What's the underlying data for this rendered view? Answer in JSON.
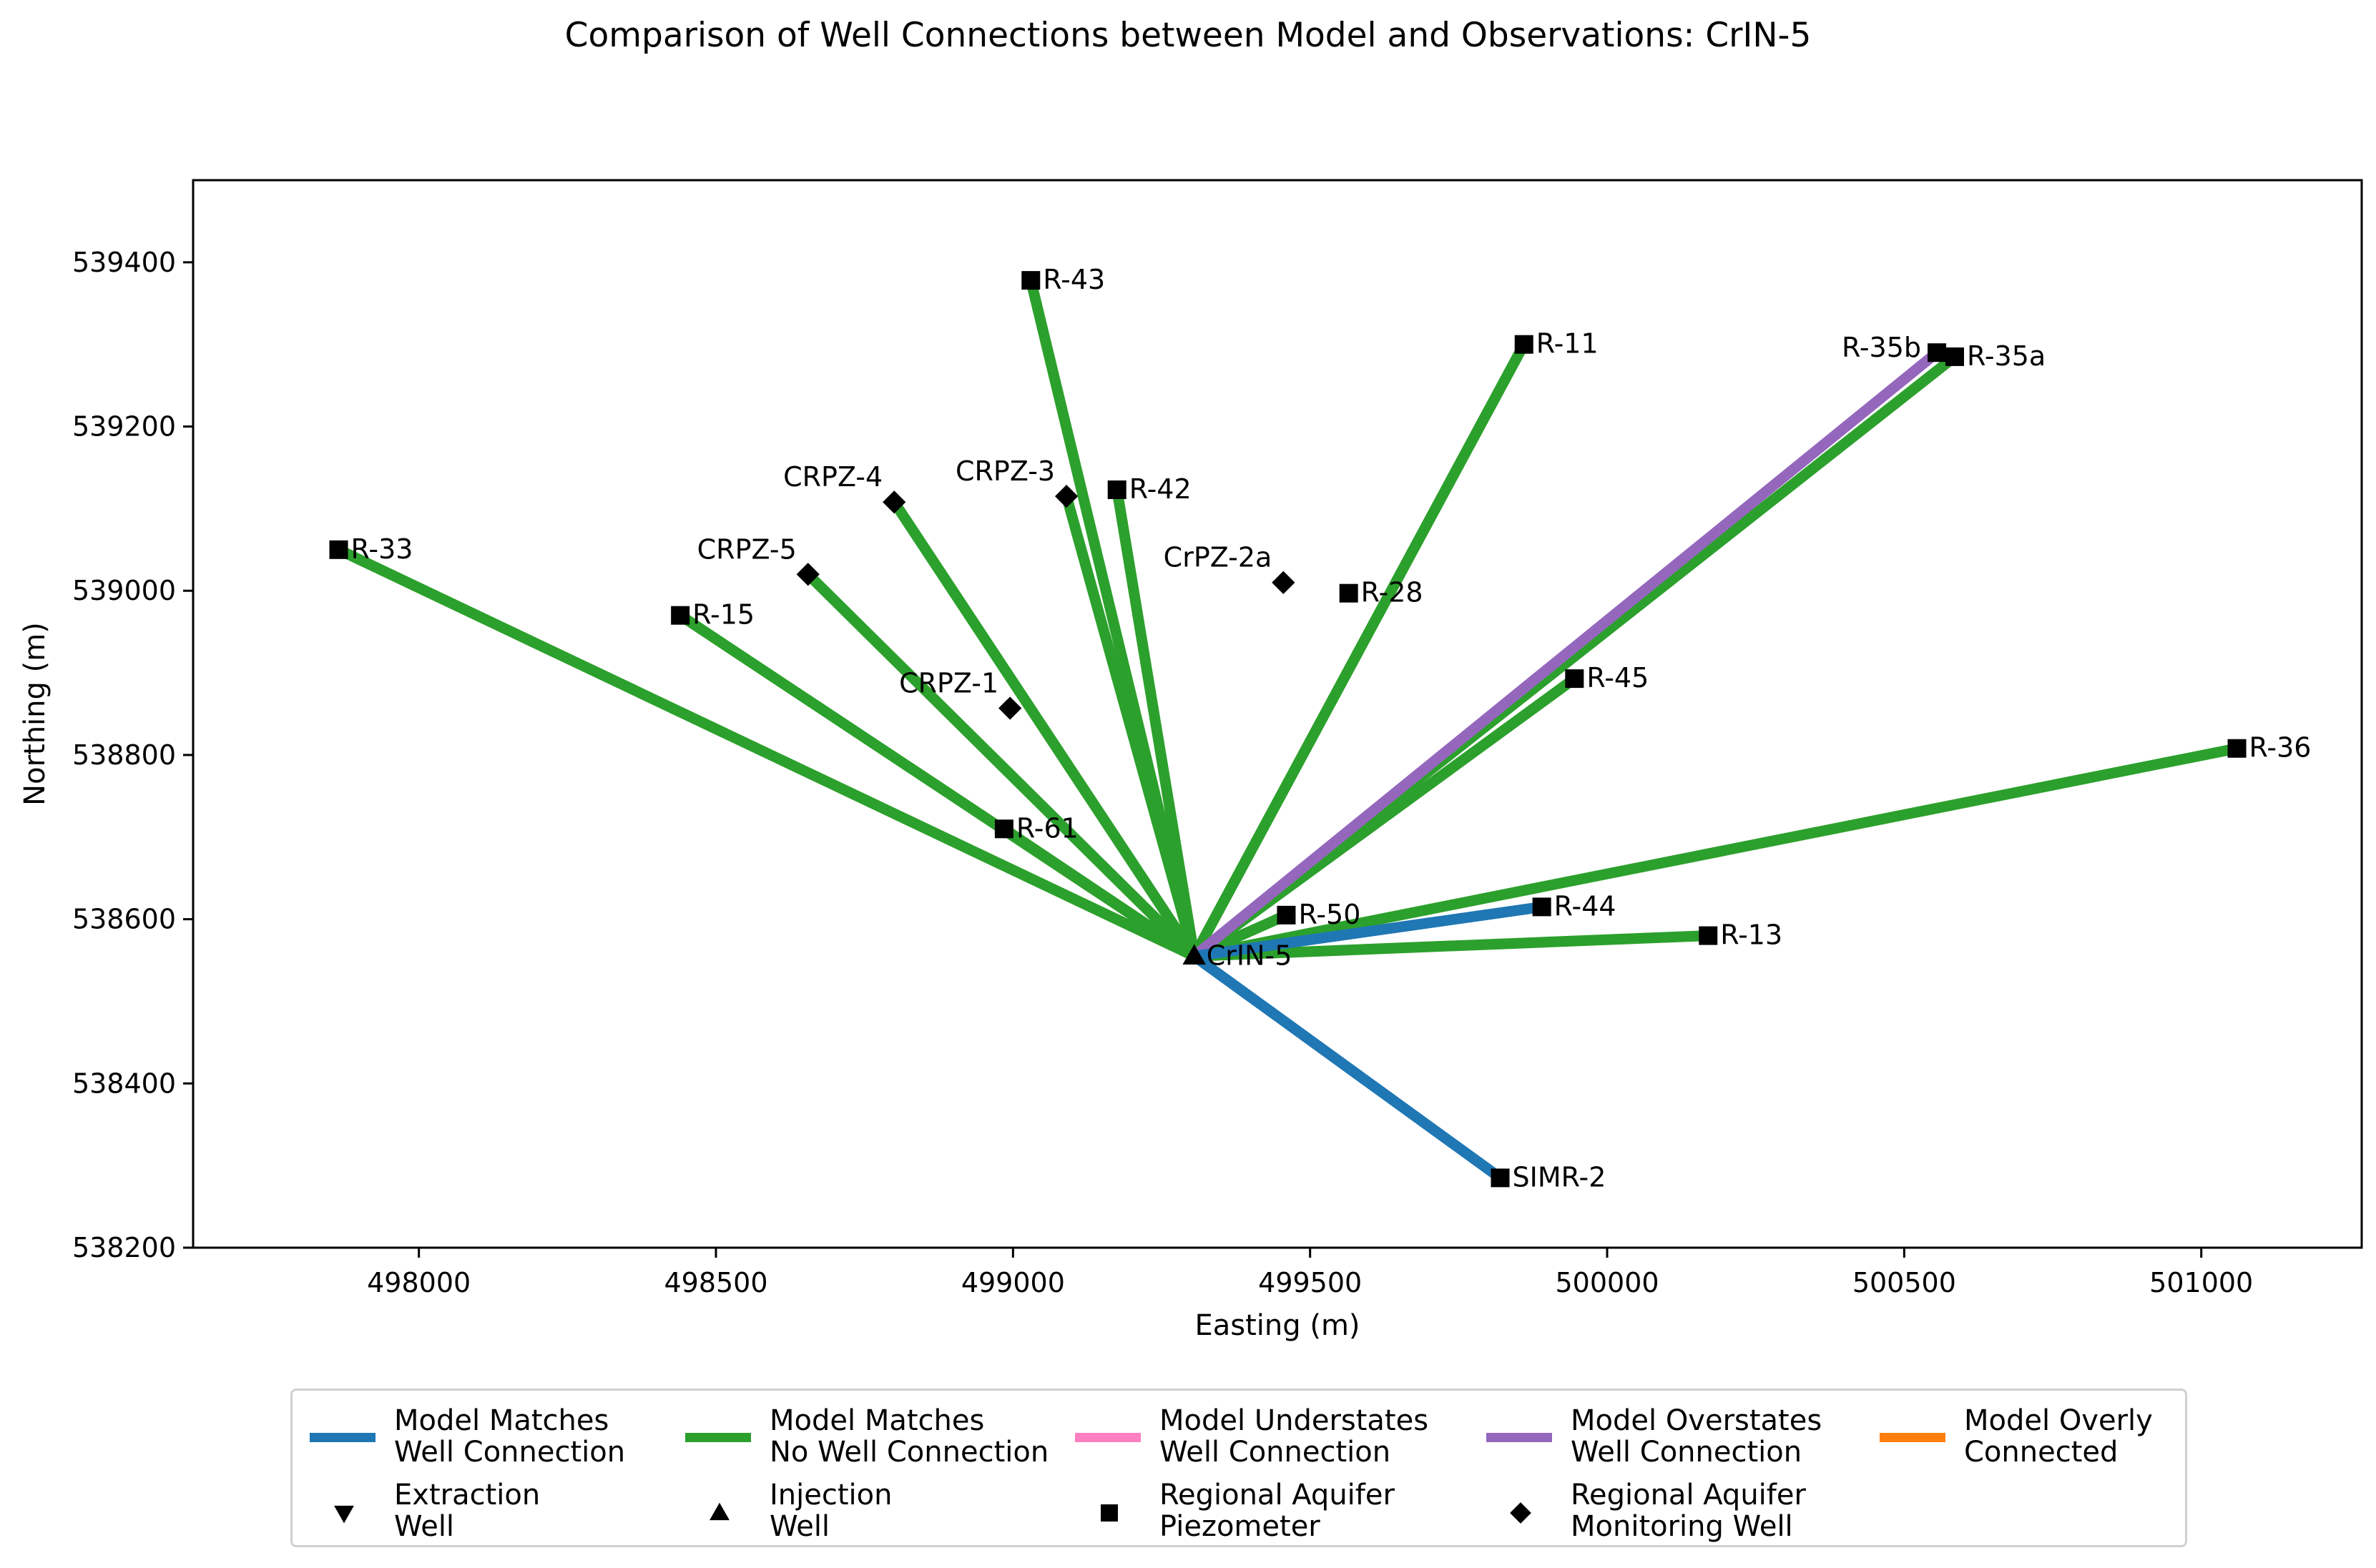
{
  "chart_data": {
    "type": "scatter",
    "title": "Comparison of Well Connections between Model and Observations: CrIN-5",
    "xlabel": "Easting (m)",
    "ylabel": "Northing (m)",
    "xlim": [
      497620,
      501270
    ],
    "ylim": [
      538200,
      539500
    ],
    "xticks": [
      498000,
      498500,
      499000,
      499500,
      500000,
      500500,
      501000
    ],
    "yticks": [
      538200,
      538400,
      538600,
      538800,
      539000,
      539200,
      539400
    ],
    "source_well": {
      "name": "CrIN-5",
      "x": 499305,
      "y": 538555,
      "marker": "triangle-up"
    },
    "wells": [
      {
        "name": "R-43",
        "x": 499030,
        "y": 539378,
        "marker": "square",
        "label_side": "right"
      },
      {
        "name": "R-11",
        "x": 499860,
        "y": 539300,
        "marker": "square",
        "label_side": "right"
      },
      {
        "name": "R-35b",
        "x": 500555,
        "y": 539290,
        "marker": "square",
        "label_side": "left"
      },
      {
        "name": "R-35a",
        "x": 500585,
        "y": 539285,
        "marker": "square",
        "label_side": "right"
      },
      {
        "name": "CRPZ-4",
        "x": 498800,
        "y": 539108,
        "marker": "diamond",
        "label_side": "upper-left"
      },
      {
        "name": "CRPZ-3",
        "x": 499090,
        "y": 539115,
        "marker": "diamond",
        "label_side": "upper-left"
      },
      {
        "name": "R-42",
        "x": 499175,
        "y": 539123,
        "marker": "square",
        "label_side": "right"
      },
      {
        "name": "R-33",
        "x": 497865,
        "y": 539050,
        "marker": "square",
        "label_side": "right"
      },
      {
        "name": "CRPZ-5",
        "x": 498655,
        "y": 539020,
        "marker": "diamond",
        "label_side": "upper-left"
      },
      {
        "name": "CrPZ-2a",
        "x": 499455,
        "y": 539010,
        "marker": "diamond",
        "label_side": "upper-left"
      },
      {
        "name": "R-28",
        "x": 499565,
        "y": 538997,
        "marker": "square",
        "label_side": "right"
      },
      {
        "name": "R-15",
        "x": 498440,
        "y": 538970,
        "marker": "square",
        "label_side": "right"
      },
      {
        "name": "R-45",
        "x": 499945,
        "y": 538893,
        "marker": "square",
        "label_side": "right"
      },
      {
        "name": "CRPZ-1",
        "x": 498995,
        "y": 538857,
        "marker": "diamond",
        "label_side": "upper-left"
      },
      {
        "name": "R-36",
        "x": 501060,
        "y": 538808,
        "marker": "square",
        "label_side": "right"
      },
      {
        "name": "R-61",
        "x": 498985,
        "y": 538710,
        "marker": "square",
        "label_side": "right"
      },
      {
        "name": "R-44",
        "x": 499890,
        "y": 538615,
        "marker": "square",
        "label_side": "right"
      },
      {
        "name": "R-50",
        "x": 499460,
        "y": 538605,
        "marker": "square",
        "label_side": "right"
      },
      {
        "name": "R-13",
        "x": 500170,
        "y": 538580,
        "marker": "square",
        "label_side": "right"
      },
      {
        "name": "SIMR-2",
        "x": 499820,
        "y": 538285,
        "marker": "square",
        "label_side": "right"
      }
    ],
    "connections": [
      {
        "to": "R-33",
        "category": "no_connection"
      },
      {
        "to": "R-15",
        "category": "no_connection"
      },
      {
        "to": "R-61",
        "category": "no_connection"
      },
      {
        "to": "CRPZ-5",
        "category": "no_connection"
      },
      {
        "to": "CRPZ-4",
        "category": "no_connection"
      },
      {
        "to": "R-43",
        "category": "no_connection"
      },
      {
        "to": "CRPZ-3",
        "category": "no_connection"
      },
      {
        "to": "R-42",
        "category": "no_connection"
      },
      {
        "to": "R-11",
        "category": "no_connection"
      },
      {
        "to": "R-35b",
        "category": "overstates"
      },
      {
        "to": "R-35a",
        "category": "no_connection"
      },
      {
        "to": "R-45",
        "category": "no_connection"
      },
      {
        "to": "R-36",
        "category": "no_connection"
      },
      {
        "to": "R-13",
        "category": "no_connection"
      },
      {
        "to": "R-50",
        "category": "no_connection"
      },
      {
        "to": "R-44",
        "category": "matches"
      },
      {
        "to": "SIMR-2",
        "category": "matches"
      }
    ],
    "legend": [
      {
        "kind": "line",
        "color": "#1f77b4",
        "label": "Model Matches\nWell Connection"
      },
      {
        "kind": "line",
        "color": "#2ca02c",
        "label": "Model Matches\nNo Well Connection"
      },
      {
        "kind": "line",
        "color": "#ff7fc0",
        "label": "Model Understates\nWell Connection"
      },
      {
        "kind": "line",
        "color": "#9467bd",
        "label": "Model Overstates\nWell Connection"
      },
      {
        "kind": "line",
        "color": "#ff7f0e",
        "label": "Model Overly\nConnected"
      },
      {
        "kind": "marker",
        "marker": "triangle-down",
        "label": "Extraction\nWell"
      },
      {
        "kind": "marker",
        "marker": "triangle-up",
        "label": "Injection\nWell"
      },
      {
        "kind": "marker",
        "marker": "square",
        "label": "Regional Aquifer\nPiezometer"
      },
      {
        "kind": "marker",
        "marker": "diamond",
        "label": "Regional Aquifer\nMonitoring Well"
      }
    ],
    "colors": {
      "matches": "#1f77b4",
      "no_connection": "#2ca02c",
      "understates": "#ff7fc0",
      "overstates": "#9467bd",
      "overly": "#ff7f0e"
    },
    "legend_placement": "below plot"
  }
}
